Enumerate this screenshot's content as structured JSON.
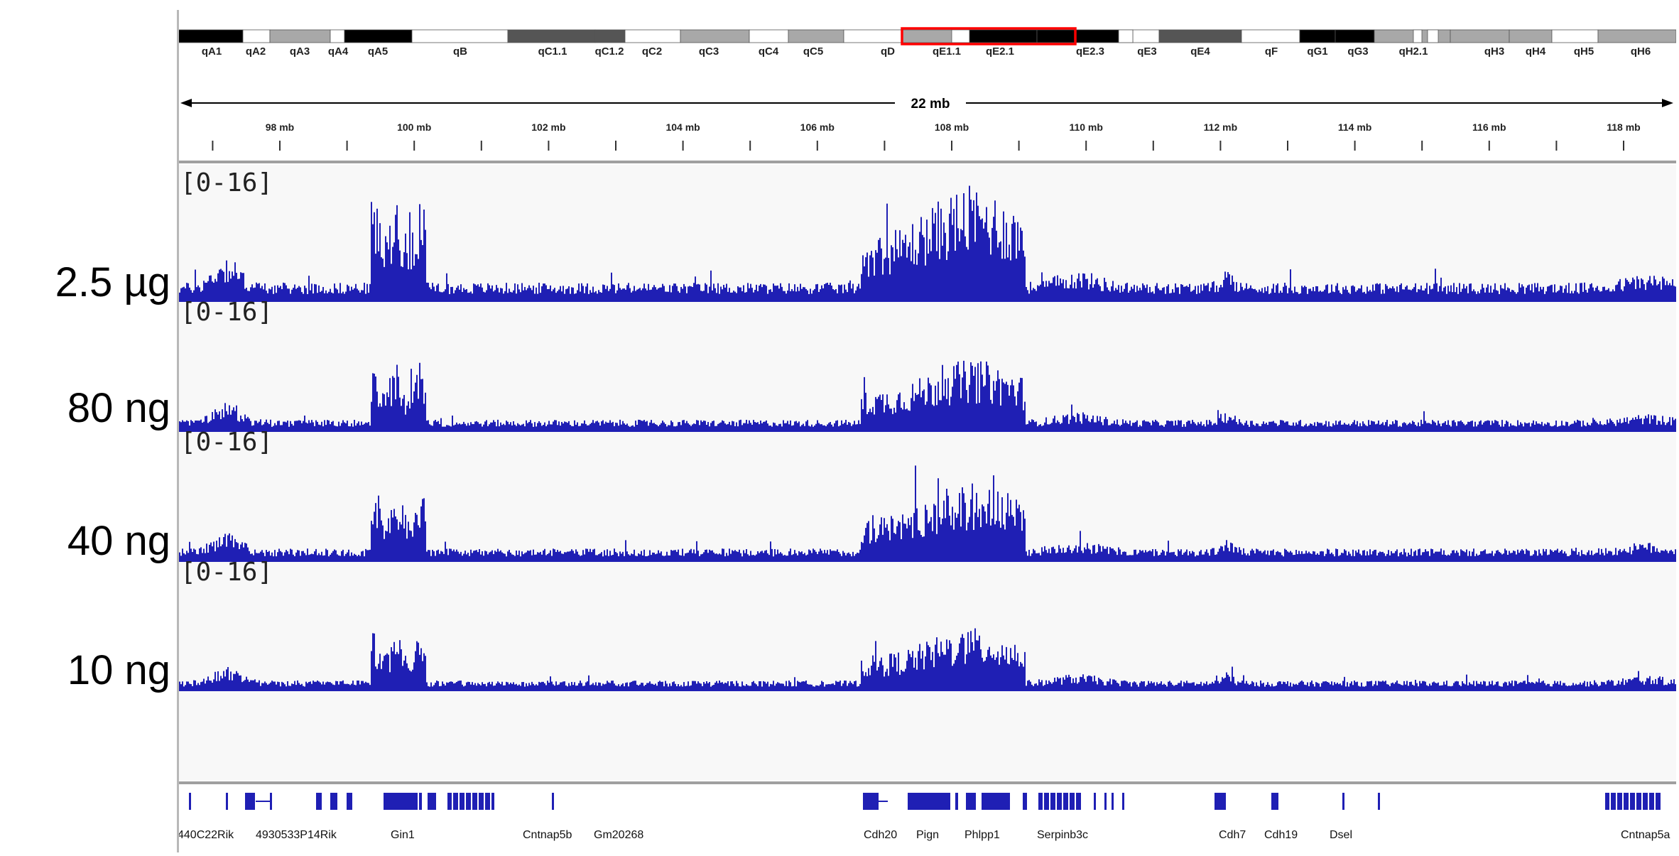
{
  "ideogram": {
    "bands": [
      {
        "name": "qA1",
        "stain": "black"
      },
      {
        "name": "qA2",
        "stain": "white"
      },
      {
        "name": "qA3",
        "stain": "gray"
      },
      {
        "name": "qA4",
        "stain": "white"
      },
      {
        "name": "qA5",
        "stain": "black"
      },
      {
        "name": "qB",
        "stain": "white"
      },
      {
        "name": "qC1.1",
        "stain": "darkgray"
      },
      {
        "name": "qC1.2",
        "stain": "darkgray"
      },
      {
        "name": "qC2",
        "stain": "white"
      },
      {
        "name": "qC3",
        "stain": "gray"
      },
      {
        "name": "qC4",
        "stain": "white"
      },
      {
        "name": "qC5",
        "stain": "gray"
      },
      {
        "name": "qD",
        "stain": "white"
      },
      {
        "name": "qE1.1",
        "stain": "gray"
      },
      {
        "name": "qE2.1",
        "stain": "black"
      },
      {
        "name": "qE2.3",
        "stain": "black"
      },
      {
        "name": "qE3",
        "stain": "white"
      },
      {
        "name": "qE4",
        "stain": "darkgray"
      },
      {
        "name": "qF",
        "stain": "white"
      },
      {
        "name": "qG1",
        "stain": "black"
      },
      {
        "name": "qG3",
        "stain": "black"
      },
      {
        "name": "qH2.1",
        "stain": "gray"
      },
      {
        "name": "qH3",
        "stain": "gray"
      },
      {
        "name": "qH4",
        "stain": "gray"
      },
      {
        "name": "qH5",
        "stain": "white"
      },
      {
        "name": "qH6",
        "stain": "gray"
      }
    ],
    "highlight_color": "#ff0000"
  },
  "ruler": {
    "span_label": "22 mb",
    "ticks": [
      {
        "label": "98 mb",
        "mb": 98
      },
      {
        "label": "100 mb",
        "mb": 100
      },
      {
        "label": "102 mb",
        "mb": 102
      },
      {
        "label": "104 mb",
        "mb": 104
      },
      {
        "label": "106 mb",
        "mb": 106
      },
      {
        "label": "108 mb",
        "mb": 108
      },
      {
        "label": "110 mb",
        "mb": 110
      },
      {
        "label": "112 mb",
        "mb": 112
      },
      {
        "label": "114 mb",
        "mb": 114
      },
      {
        "label": "116 mb",
        "mb": 116
      },
      {
        "label": "118 mb",
        "mb": 118
      }
    ]
  },
  "tracks": [
    {
      "label": "2.5 µg",
      "range": "[0-16]",
      "scale": 1.0
    },
    {
      "label": "80 ng",
      "range": "[0-16]",
      "scale": 0.62
    },
    {
      "label": "40 ng",
      "range": "[0-16]",
      "scale": 0.68
    },
    {
      "label": "10 ng",
      "range": "[0-16]",
      "scale": 0.54
    }
  ],
  "track_color": "#1f1fb4",
  "genes": [
    {
      "name": "440C22Rik"
    },
    {
      "name": "4930533P14Rik"
    },
    {
      "name": "Gin1"
    },
    {
      "name": "Cntnap5b"
    },
    {
      "name": "Gm20268"
    },
    {
      "name": "Cdh20"
    },
    {
      "name": "Pign"
    },
    {
      "name": "Phlpp1"
    },
    {
      "name": "Serpinb3c"
    },
    {
      "name": "Cdh7"
    },
    {
      "name": "Cdh19"
    },
    {
      "name": "Dsel"
    },
    {
      "name": "Cntnap5a"
    }
  ]
}
